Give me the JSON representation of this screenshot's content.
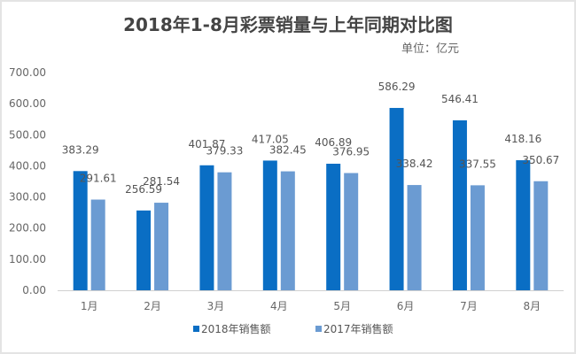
{
  "chart_data": {
    "type": "bar",
    "title": "2018年1-8月彩票销量与上年同期对比图",
    "subtitle": "单位：亿元",
    "categories": [
      "1月",
      "2月",
      "3月",
      "4月",
      "5月",
      "6月",
      "7月",
      "8月"
    ],
    "series": [
      {
        "name": "2018年销售额",
        "color": "#0A6EC4",
        "values": [
          383.29,
          256.59,
          401.87,
          417.05,
          406.89,
          586.29,
          546.41,
          418.16
        ],
        "labels": [
          "383.29",
          "256.59",
          "401.87",
          "417.05",
          "406.89",
          "586.29",
          "546.41",
          "418.16"
        ]
      },
      {
        "name": "2017年销售额",
        "color": "#6B9BD2",
        "values": [
          291.61,
          281.54,
          379.33,
          382.45,
          376.95,
          338.42,
          337.55,
          350.67
        ],
        "labels": [
          "291.61",
          "281.54",
          "379.33",
          "382.45",
          "376.95",
          "338.42",
          "337.55",
          "350.67"
        ]
      }
    ],
    "ylim": [
      0,
      700
    ],
    "yticks": [
      "0.00",
      "100.00",
      "200.00",
      "300.00",
      "400.00",
      "500.00",
      "600.00",
      "700.00"
    ],
    "grid": false,
    "legend": "bottom",
    "xlabel": "",
    "ylabel": ""
  }
}
